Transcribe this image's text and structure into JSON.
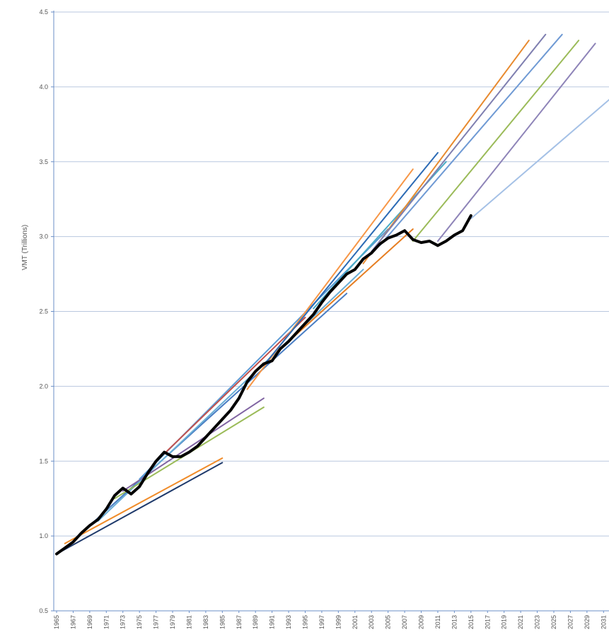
{
  "chart_data": {
    "type": "line",
    "title": "",
    "xlabel": "",
    "ylabel": "VMT (Trillions)",
    "xlim": [
      1965,
      2032
    ],
    "ylim": [
      0.5,
      4.5
    ],
    "y_ticks": [
      "0.5",
      "1.0",
      "1.5",
      "2.0",
      "2.5",
      "3.0",
      "3.5",
      "4.0",
      "4.5"
    ],
    "x_ticks": [
      "1965",
      "1967",
      "1969",
      "1971",
      "1973",
      "1975",
      "1977",
      "1979",
      "1981",
      "1983",
      "1985",
      "1987",
      "1989",
      "1991",
      "1993",
      "1995",
      "1997",
      "1999",
      "2001",
      "2003",
      "2005",
      "2007",
      "2009",
      "2011",
      "2013",
      "2015",
      "2017",
      "2019",
      "2021",
      "2023",
      "2025",
      "2027",
      "2029",
      "2031"
    ],
    "grid": "horizontal",
    "legend": "none",
    "series": [
      {
        "color": "#1f3a6b",
        "x": [
          1965,
          1985
        ],
        "y": [
          0.88,
          1.49
        ]
      },
      {
        "color": "#f08c2a",
        "x": [
          1966,
          1985
        ],
        "y": [
          0.95,
          1.52
        ]
      },
      {
        "color": "#4a7ec4",
        "x": [
          1968,
          2000
        ],
        "y": [
          1.02,
          2.62
        ]
      },
      {
        "color": "#6aaed6",
        "x": [
          1970,
          2002
        ],
        "y": [
          1.1,
          2.78
        ]
      },
      {
        "color": "#9bbb59",
        "x": [
          1972,
          1990
        ],
        "y": [
          1.25,
          1.86
        ]
      },
      {
        "color": "#8064a2",
        "x": [
          1973,
          1990
        ],
        "y": [
          1.3,
          1.92
        ]
      },
      {
        "color": "#5b9bd5",
        "x": [
          1975,
          2005
        ],
        "y": [
          1.38,
          3.05
        ]
      },
      {
        "color": "#c0504d",
        "x": [
          1978,
          1995
        ],
        "y": [
          1.55,
          2.46
        ]
      },
      {
        "color": "#f79646",
        "x": [
          1988,
          2008
        ],
        "y": [
          1.98,
          3.45
        ]
      },
      {
        "color": "#2c6bb5",
        "x": [
          1990,
          2011
        ],
        "y": [
          2.14,
          3.56
        ]
      },
      {
        "color": "#e67e22",
        "x": [
          1993,
          2008
        ],
        "y": [
          2.3,
          3.05
        ]
      },
      {
        "color": "#4bacc6",
        "x": [
          1996,
          2012
        ],
        "y": [
          2.52,
          3.5
        ]
      },
      {
        "color": "#e88a2f",
        "x": [
          2002,
          2022
        ],
        "y": [
          2.82,
          4.31
        ]
      },
      {
        "color": "#7f7fb0",
        "x": [
          2003,
          2024
        ],
        "y": [
          2.9,
          4.35
        ]
      },
      {
        "color": "#6f9ad4",
        "x": [
          2004,
          2026
        ],
        "y": [
          2.94,
          4.35
        ]
      },
      {
        "color": "#9bbb59",
        "x": [
          2008,
          2028
        ],
        "y": [
          2.97,
          4.31
        ]
      },
      {
        "color": "#8e84b8",
        "x": [
          2011,
          2030
        ],
        "y": [
          2.97,
          4.29
        ]
      },
      {
        "color": "#a5c1e6",
        "x": [
          2015,
          2032
        ],
        "y": [
          3.12,
          3.93
        ]
      },
      {
        "color": "#000000",
        "name": "",
        "x": [
          1965,
          1966,
          1967,
          1968,
          1969,
          1970,
          1971,
          1972,
          1973,
          1974,
          1975,
          1976,
          1977,
          1978,
          1979,
          1980,
          1981,
          1982,
          1983,
          1984,
          1985,
          1986,
          1987,
          1988,
          1989,
          1990,
          1991,
          1992,
          1993,
          1994,
          1995,
          1996,
          1997,
          1998,
          1999,
          2000,
          2001,
          2002,
          2003,
          2004,
          2005,
          2006,
          2007,
          2008,
          2009,
          2010,
          2011,
          2012,
          2013,
          2014,
          2015
        ],
        "y": [
          0.88,
          0.92,
          0.96,
          1.02,
          1.07,
          1.11,
          1.18,
          1.27,
          1.32,
          1.28,
          1.33,
          1.42,
          1.5,
          1.56,
          1.53,
          1.53,
          1.56,
          1.6,
          1.66,
          1.72,
          1.78,
          1.84,
          1.92,
          2.03,
          2.1,
          2.15,
          2.17,
          2.25,
          2.3,
          2.36,
          2.42,
          2.48,
          2.56,
          2.63,
          2.69,
          2.75,
          2.78,
          2.85,
          2.89,
          2.95,
          2.99,
          3.01,
          3.04,
          2.98,
          2.96,
          2.97,
          2.94,
          2.97,
          3.01,
          3.04,
          3.14
        ]
      }
    ]
  }
}
